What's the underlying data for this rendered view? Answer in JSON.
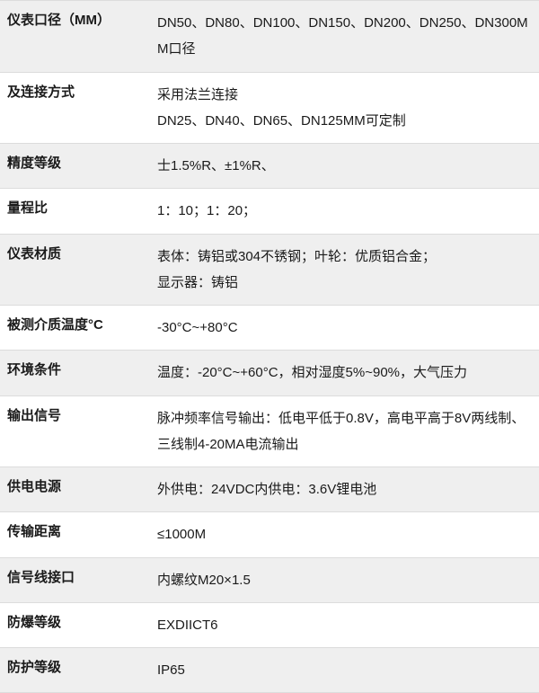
{
  "table": {
    "background_odd": "#efefef",
    "background_even": "#ffffff",
    "border_color": "#dcdcdc",
    "label_fontsize": 15,
    "value_fontsize": 15,
    "label_fontweight": 700,
    "value_fontweight": 400,
    "text_color": "#1a1a1a",
    "rows": [
      {
        "label": "仪表口径（MM）",
        "value": "DN50、DN80、DN100、DN150、DN200、DN250、DN300MM口径"
      },
      {
        "label": "及连接方式",
        "value": "采用法兰连接\nDN25、DN40、DN65、DN125MM可定制"
      },
      {
        "label": "精度等级",
        "value": "士1.5%R、±1%R、"
      },
      {
        "label": "量程比",
        "value": "1：10；1：20；"
      },
      {
        "label": "仪表材质",
        "value": "表体：铸铝或304不锈钢；叶轮：优质铝合金；\n显示器：铸铝"
      },
      {
        "label": "被测介质温度°C",
        "value": "-30°C~+80°C"
      },
      {
        "label": "环境条件",
        "value": "温度：-20°C~+60°C，相对湿度5%~90%，大气压力"
      },
      {
        "label": "输出信号",
        "value": "脉冲频率信号输出：低电平低于0.8V，高电平高于8V两线制、三线制4-20MA电流输出"
      },
      {
        "label": "供电电源",
        "value": "外供电：24VDC内供电：3.6V锂电池"
      },
      {
        "label": "传输距离",
        "value": "≤1000M"
      },
      {
        "label": "信号线接口",
        "value": "内螺纹M20×1.5"
      },
      {
        "label": "防爆等级",
        "value": "EXDIICT6"
      },
      {
        "label": "防护等级",
        "value": "IP65"
      }
    ]
  }
}
